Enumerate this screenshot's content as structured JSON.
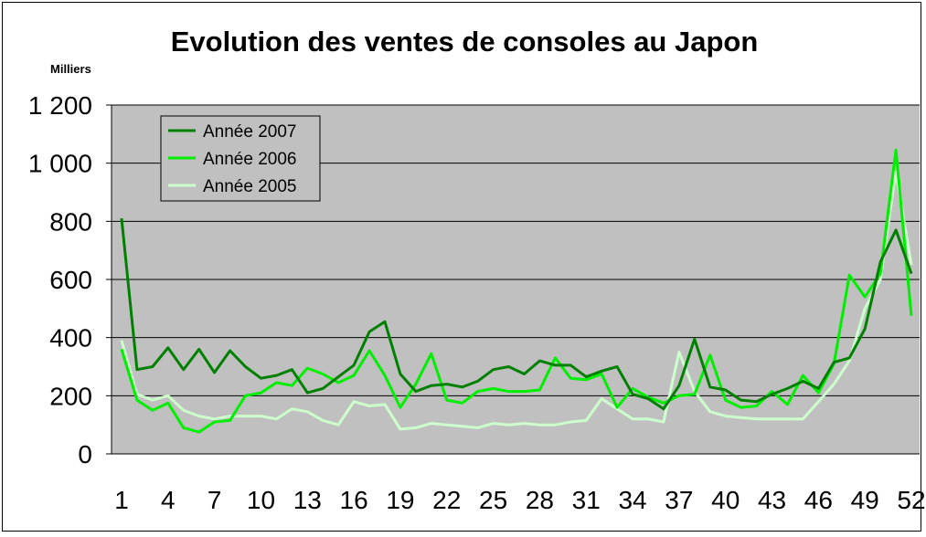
{
  "chart_data": {
    "type": "line",
    "title": "Evolution des ventes de consoles au Japon",
    "ylabel": "Milliers",
    "xlabel": "",
    "ylim": [
      0,
      1200
    ],
    "yticks": [
      0,
      200,
      400,
      600,
      800,
      1000,
      1200
    ],
    "ytick_labels": [
      "0",
      "200",
      "400",
      "600",
      "800",
      "1 000",
      "1 200"
    ],
    "xlim": [
      1,
      52
    ],
    "xticks": [
      1,
      4,
      7,
      10,
      13,
      16,
      19,
      22,
      25,
      28,
      31,
      34,
      37,
      40,
      43,
      46,
      49,
      52
    ],
    "xtick_labels": [
      "1",
      "4",
      "7",
      "10",
      "13",
      "16",
      "19",
      "22",
      "25",
      "28",
      "31",
      "34",
      "37",
      "40",
      "43",
      "46",
      "49",
      "52"
    ],
    "grid": true,
    "legend_position": "top-left",
    "plot_background": "#c0c0c0",
    "series": [
      {
        "name": "Année 2007",
        "color": "#008000",
        "values": [
          810,
          290,
          300,
          365,
          290,
          360,
          280,
          355,
          300,
          260,
          270,
          290,
          210,
          225,
          265,
          305,
          420,
          455,
          275,
          215,
          235,
          240,
          230,
          250,
          290,
          300,
          275,
          320,
          305,
          305,
          265,
          285,
          300,
          205,
          190,
          155,
          235,
          395,
          230,
          220,
          185,
          180,
          205,
          225,
          250,
          225,
          315,
          330,
          430,
          660,
          770,
          620
        ]
      },
      {
        "name": "Année 2006",
        "color": "#00ee00",
        "values": [
          360,
          185,
          150,
          175,
          90,
          75,
          110,
          115,
          200,
          210,
          245,
          235,
          295,
          275,
          245,
          270,
          355,
          270,
          160,
          240,
          345,
          185,
          175,
          215,
          225,
          215,
          215,
          220,
          330,
          260,
          255,
          275,
          160,
          225,
          195,
          175,
          200,
          205,
          340,
          185,
          160,
          165,
          215,
          170,
          270,
          210,
          310,
          615,
          540,
          620,
          1045,
          475
        ]
      },
      {
        "name": "Année 2005",
        "color": "#ccffcc",
        "values": [
          390,
          205,
          185,
          200,
          150,
          130,
          120,
          130,
          130,
          130,
          120,
          155,
          145,
          115,
          100,
          180,
          165,
          170,
          85,
          90,
          105,
          100,
          95,
          90,
          105,
          100,
          105,
          100,
          100,
          110,
          115,
          190,
          155,
          120,
          120,
          110,
          350,
          215,
          145,
          130,
          125,
          120,
          120,
          120,
          120,
          180,
          240,
          320,
          500,
          600,
          970,
          650
        ]
      }
    ]
  }
}
